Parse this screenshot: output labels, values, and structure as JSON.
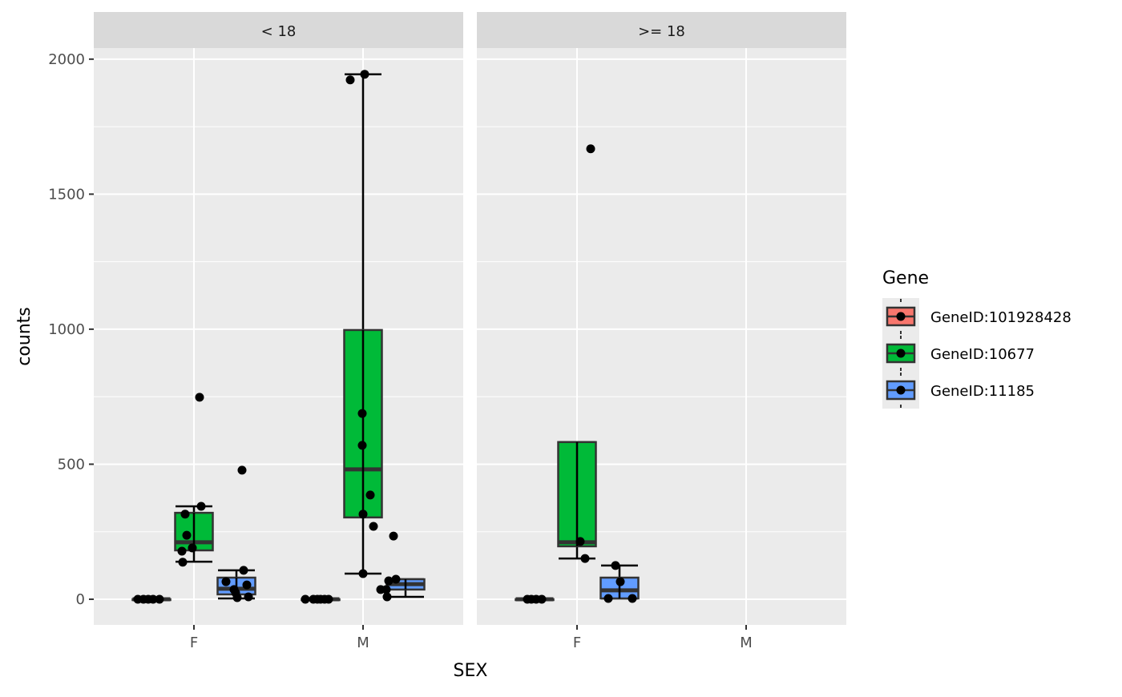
{
  "chart_data": {
    "type": "box",
    "xlabel": "SEX",
    "ylabel": "counts",
    "ylim": [
      -95,
      2041
    ],
    "yticks": [
      0,
      500,
      1000,
      1500,
      2000
    ],
    "ytick_labels": [
      "0",
      "500",
      "1000",
      "1500",
      "2000"
    ],
    "categories": [
      "F",
      "M"
    ],
    "grid": true,
    "facets": [
      "< 18",
      ">= 18"
    ],
    "legend": {
      "title": "Gene",
      "position": "right",
      "entries": [
        {
          "label": "GeneID:101928428",
          "color": "#F8766D"
        },
        {
          "label": "GeneID:10677",
          "color": "#00BA38"
        },
        {
          "label": "GeneID:11185",
          "color": "#619CFF"
        }
      ]
    },
    "groups": [
      {
        "facet": 0,
        "category": "F",
        "gene": 0,
        "box": {
          "lower": 0,
          "q1": 0,
          "median": 0,
          "q3": 0,
          "upper": 0
        },
        "points": [
          0,
          0,
          0,
          0,
          0
        ]
      },
      {
        "facet": 0,
        "category": "F",
        "gene": 1,
        "box": {
          "lower": 139,
          "q1": 181,
          "median": 211,
          "q3": 320,
          "upper": 344
        },
        "points": [
          748,
          344,
          315,
          237,
          190,
          178,
          137
        ]
      },
      {
        "facet": 0,
        "category": "F",
        "gene": 2,
        "box": {
          "lower": 3,
          "q1": 18,
          "median": 39,
          "q3": 80,
          "upper": 107
        },
        "points": [
          478,
          107,
          65,
          53,
          36,
          6,
          9,
          24
        ]
      },
      {
        "facet": 0,
        "category": "M",
        "gene": 0,
        "box": {
          "lower": 0,
          "q1": 0,
          "median": 0,
          "q3": 0,
          "upper": 0
        },
        "points": [
          0,
          0,
          0,
          0,
          0,
          0
        ]
      },
      {
        "facet": 0,
        "category": "M",
        "gene": 1,
        "box": {
          "lower": 95,
          "q1": 303,
          "median": 481,
          "q3": 997,
          "upper": 1944
        },
        "points": [
          1944,
          1923,
          688,
          570,
          386,
          315,
          270,
          95
        ]
      },
      {
        "facet": 0,
        "category": "M",
        "gene": 2,
        "box": {
          "lower": 9,
          "q1": 36,
          "median": 56,
          "q3": 74,
          "upper": 74
        },
        "points": [
          234,
          74,
          68,
          36,
          36,
          9
        ]
      },
      {
        "facet": 1,
        "category": "F",
        "gene": 0,
        "box": {
          "lower": 0,
          "q1": 0,
          "median": 0,
          "q3": 0,
          "upper": 0
        },
        "points": [
          0,
          0,
          0,
          0
        ]
      },
      {
        "facet": 1,
        "category": "F",
        "gene": 1,
        "box": {
          "lower": 151,
          "q1": 196,
          "median": 211,
          "q3": 582,
          "upper": 582
        },
        "points": [
          1668,
          214,
          151
        ]
      },
      {
        "facet": 1,
        "category": "F",
        "gene": 2,
        "box": {
          "lower": 3,
          "q1": 3,
          "median": 33,
          "q3": 80,
          "upper": 125
        },
        "points": [
          125,
          65,
          3,
          3
        ]
      }
    ]
  }
}
